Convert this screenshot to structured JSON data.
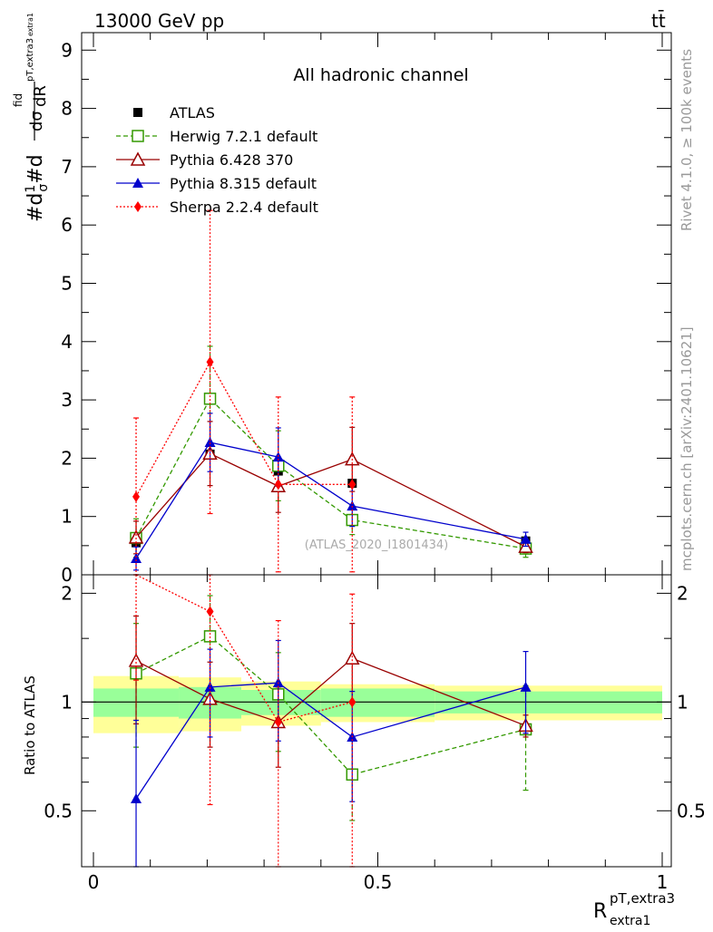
{
  "header": {
    "left": "13000 GeV pp",
    "right": "tt̄"
  },
  "side_labels": {
    "rivet": "Rivet 4.1.0, ≥ 100k events",
    "mcplots": "mcplots.cern.ch [arXiv:2401.10621]"
  },
  "chart_data": {
    "type": "line",
    "title": "All hadronic channel",
    "watermark": "(ATLAS_2020_I1801434)",
    "ylabel": "#d¹⁄σ #d dσfid / dR pT,extra3 extra1",
    "ratio_ylabel": "Ratio to ATLAS",
    "xlabel": "R",
    "xlabel_sup": "pT,extra3",
    "xlabel_sub": "extra1",
    "xlim": [
      0,
      1
    ],
    "ylim": [
      0,
      9.3
    ],
    "ratio_ylim": [
      0.35,
      2.25
    ],
    "x_ticks": [
      0,
      0.5,
      1
    ],
    "x_tick_labels": [
      "0",
      "0.5",
      "1"
    ],
    "y_ticks": [
      0,
      1,
      2,
      3,
      4,
      5,
      6,
      7,
      8,
      9
    ],
    "y_tick_labels": [
      "0",
      "1",
      "2",
      "3",
      "4",
      "5",
      "6",
      "7",
      "8",
      "9"
    ],
    "ratio_ticks": [
      0.5,
      1,
      2
    ],
    "ratio_tick_labels": [
      "0.5",
      "1",
      "2"
    ],
    "x_bins": [
      [
        0,
        0.15
      ],
      [
        0.15,
        0.26
      ],
      [
        0.26,
        0.4
      ],
      [
        0.4,
        0.6
      ],
      [
        0.6,
        1.0
      ]
    ],
    "data": {
      "name": "ATLAS",
      "x": [
        0.075,
        0.205,
        0.325,
        0.455,
        0.76
      ],
      "y": [
        0.55,
        2.07,
        1.78,
        1.57,
        0.58
      ],
      "band_inner": [
        0.09,
        0.1,
        0.08,
        0.09,
        0.07
      ],
      "band_outer": [
        0.18,
        0.17,
        0.14,
        0.12,
        0.11
      ]
    },
    "series": [
      {
        "name": "Herwig 7.2.1 default",
        "color": "#339900",
        "marker": "open-square",
        "dash": "5,3",
        "x": [
          0.075,
          0.205,
          0.325,
          0.455,
          0.76
        ],
        "y": [
          0.63,
          3.02,
          1.87,
          0.94,
          0.45
        ],
        "err": [
          0.33,
          0.9,
          0.6,
          0.25,
          0.15
        ],
        "ratio": [
          1.2,
          1.52,
          1.05,
          0.63,
          0.84
        ],
        "ratio_err": [
          0.45,
          0.45,
          0.32,
          0.16,
          0.27
        ]
      },
      {
        "name": "Pythia 6.428 370",
        "color": "#990000",
        "marker": "open-triangle",
        "dash": "",
        "x": [
          0.075,
          0.205,
          0.325,
          0.455,
          0.76
        ],
        "y": [
          0.64,
          2.08,
          1.52,
          1.98,
          0.48
        ],
        "err": [
          0.28,
          0.55,
          0.45,
          0.55,
          0.1
        ],
        "ratio": [
          1.3,
          1.02,
          0.88,
          1.32,
          0.86
        ],
        "ratio_err": [
          0.43,
          0.27,
          0.22,
          0.33,
          0.06
        ]
      },
      {
        "name": "Pythia 8.315 default",
        "color": "#0000cc",
        "marker": "filled-triangle",
        "dash": "",
        "x": [
          0.075,
          0.205,
          0.325,
          0.455,
          0.76
        ],
        "y": [
          0.28,
          2.27,
          2.02,
          1.18,
          0.61
        ],
        "err": [
          0.2,
          0.5,
          0.5,
          0.35,
          0.12
        ],
        "ratio": [
          0.54,
          1.1,
          1.13,
          0.8,
          1.1
        ],
        "ratio_err": [
          0.35,
          0.3,
          0.35,
          0.27,
          0.28
        ]
      },
      {
        "name": "Sherpa 2.2.4 default",
        "color": "#ff0000",
        "marker": "filled-diamond",
        "dash": "2,2",
        "x": [
          0.075,
          0.205,
          0.325,
          0.455,
          0.76
        ],
        "y": [
          1.34,
          3.65,
          1.55,
          1.55,
          null
        ],
        "err": [
          1.35,
          2.6,
          1.5,
          1.5,
          null
        ],
        "ratio": [
          2.45,
          1.78,
          0.88,
          1.0,
          null
        ],
        "ratio_err": [
          1.3,
          1.26,
          0.8,
          0.99,
          null
        ]
      }
    ]
  }
}
